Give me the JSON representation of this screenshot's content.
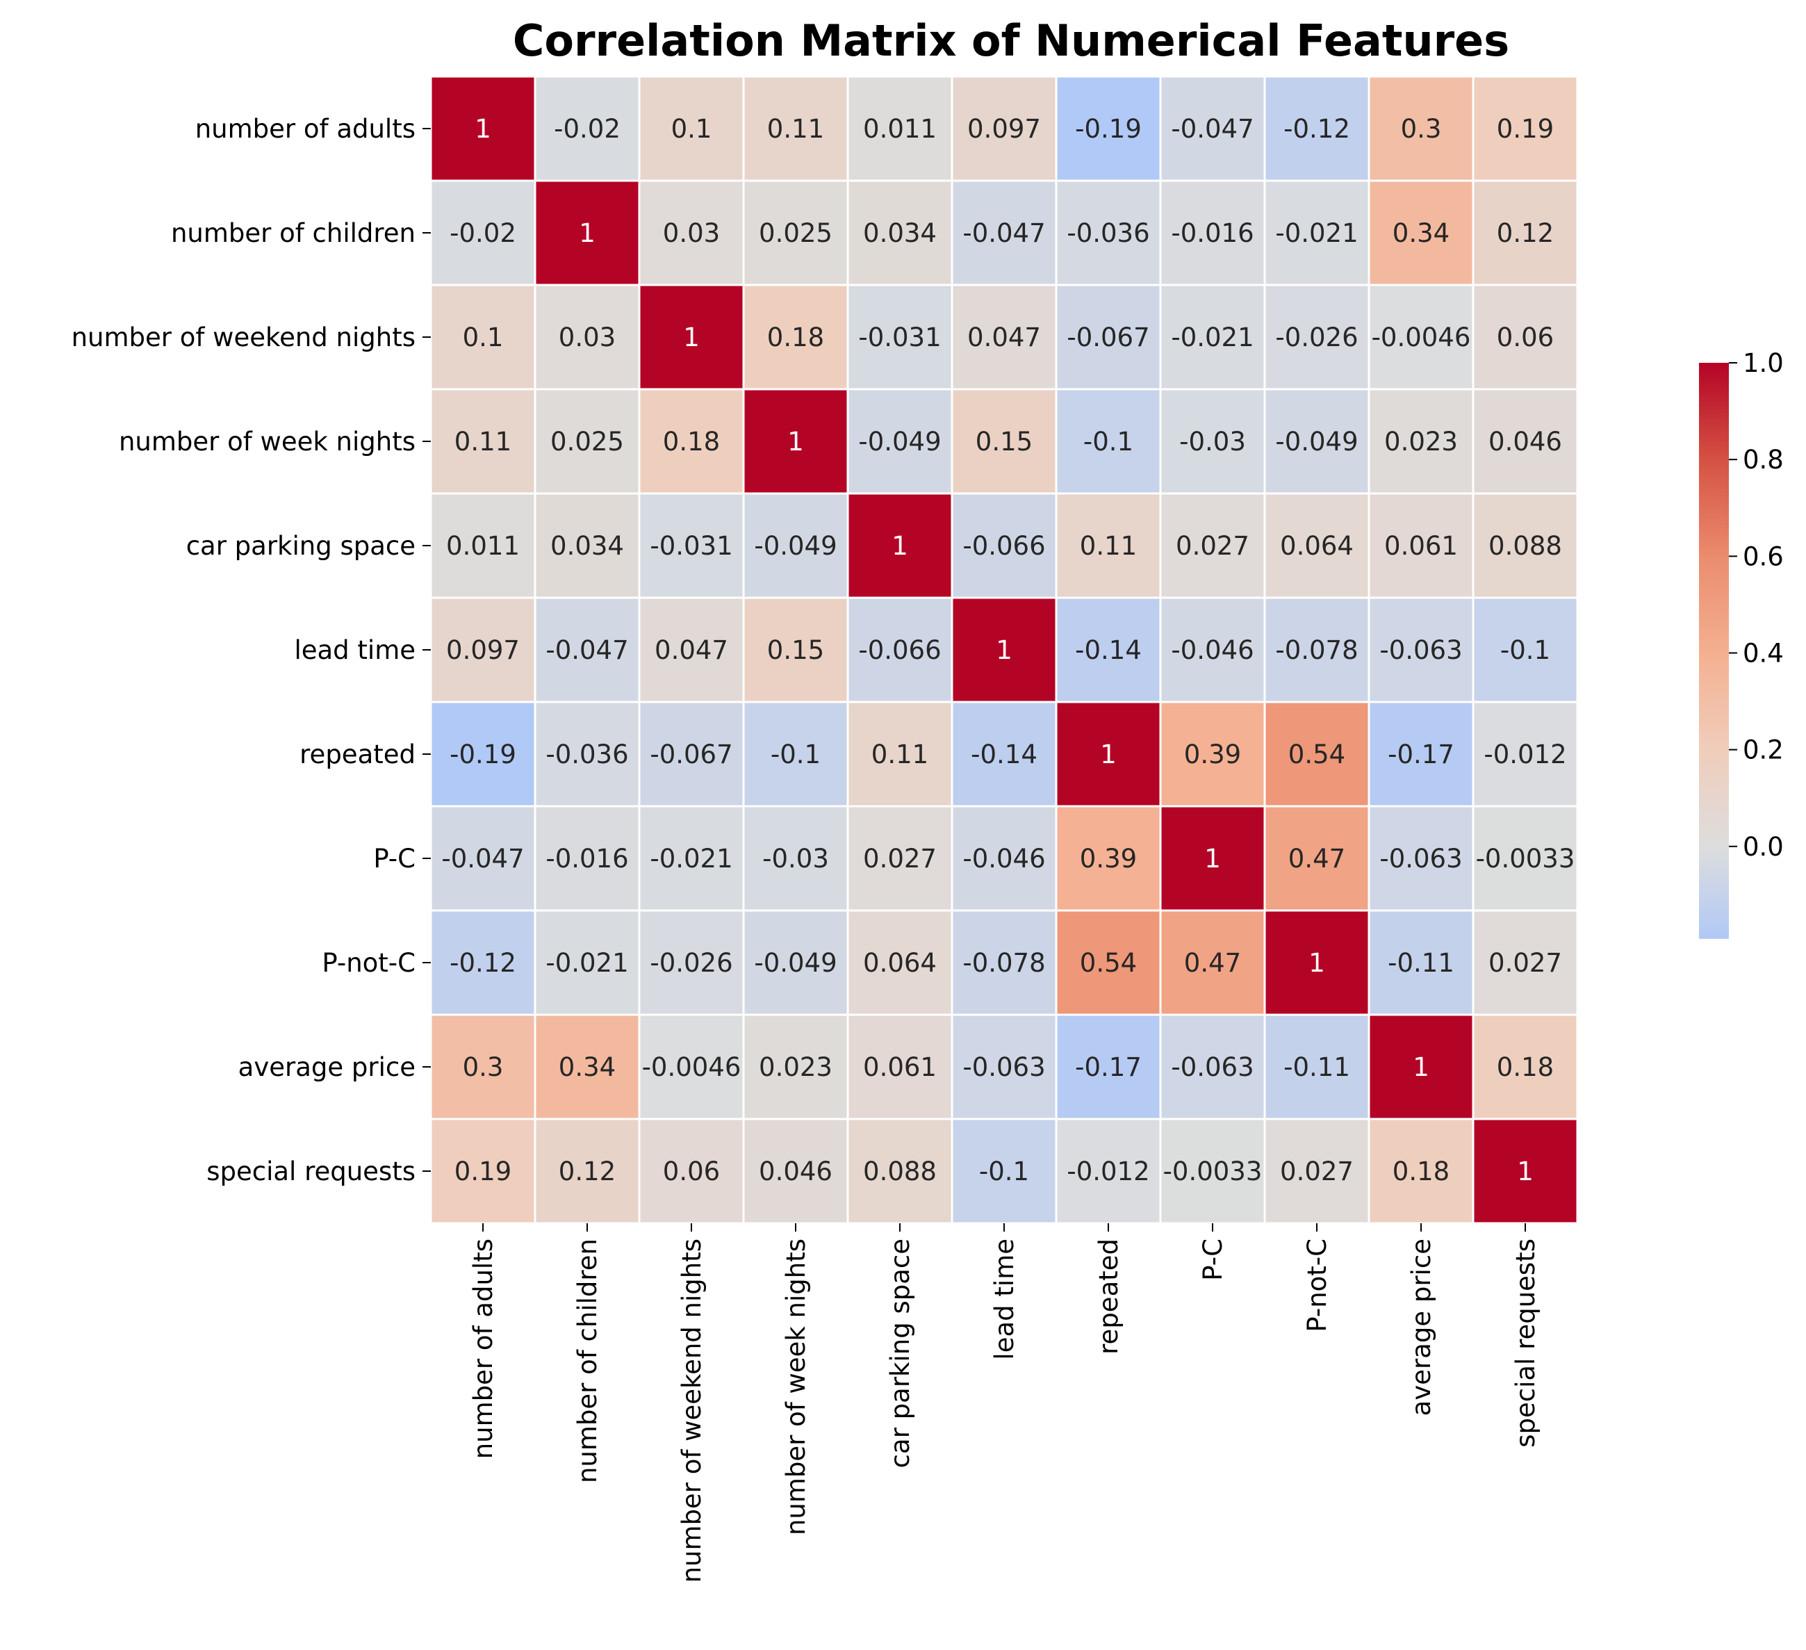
{
  "chart_data": {
    "type": "heatmap",
    "title": "Correlation Matrix of Numerical Features",
    "xlabel": "",
    "ylabel": "",
    "colormap": "coolwarm",
    "center": 0,
    "vmin": -0.19,
    "vmax": 1.0,
    "labels": [
      "number of adults",
      "number of children",
      "number of weekend nights",
      "number of week nights",
      "car parking space",
      "lead time",
      "repeated",
      "P-C",
      "P-not-C",
      "average price ",
      "special requests"
    ],
    "x_tick_labels": [
      "number of adults",
      "number of children",
      "number of weekend nights",
      "number of week nights",
      "car parking space",
      "lead time",
      "repeated",
      "P-C",
      "P-not-C",
      "average price",
      "special requests"
    ],
    "values": [
      [
        1,
        -0.02,
        0.1,
        0.11,
        0.011,
        0.097,
        -0.19,
        -0.047,
        -0.12,
        0.3,
        0.19
      ],
      [
        -0.02,
        1,
        0.03,
        0.025,
        0.034,
        -0.047,
        -0.036,
        -0.016,
        -0.021,
        0.34,
        0.12
      ],
      [
        0.1,
        0.03,
        1,
        0.18,
        -0.031,
        0.047,
        -0.067,
        -0.021,
        -0.026,
        -0.0046,
        0.06
      ],
      [
        0.11,
        0.025,
        0.18,
        1,
        -0.049,
        0.15,
        -0.1,
        -0.03,
        -0.049,
        0.023,
        0.046
      ],
      [
        0.011,
        0.034,
        -0.031,
        -0.049,
        1,
        -0.066,
        0.11,
        0.027,
        0.064,
        0.061,
        0.088
      ],
      [
        0.097,
        -0.047,
        0.047,
        0.15,
        -0.066,
        1,
        -0.14,
        -0.046,
        -0.078,
        -0.063,
        -0.1
      ],
      [
        -0.19,
        -0.036,
        -0.067,
        -0.1,
        0.11,
        -0.14,
        1,
        0.39,
        0.54,
        -0.17,
        -0.012
      ],
      [
        -0.047,
        -0.016,
        -0.021,
        -0.03,
        0.027,
        -0.046,
        0.39,
        1,
        0.47,
        -0.063,
        -0.0033
      ],
      [
        -0.12,
        -0.021,
        -0.026,
        -0.049,
        0.064,
        -0.078,
        0.54,
        0.47,
        1,
        -0.11,
        0.027
      ],
      [
        0.3,
        0.34,
        -0.0046,
        0.023,
        0.061,
        -0.063,
        -0.17,
        -0.063,
        -0.11,
        1,
        0.18
      ],
      [
        0.19,
        0.12,
        0.06,
        0.046,
        0.088,
        -0.1,
        -0.012,
        -0.0033,
        0.027,
        0.18,
        1
      ]
    ],
    "colorbar": {
      "ticks": [
        1.0,
        0.8,
        0.6,
        0.4,
        0.2,
        0.0
      ],
      "tick_labels": [
        "1.0",
        "0.8",
        "0.6",
        "0.4",
        "0.2",
        "0.0"
      ],
      "range": [
        -0.19,
        1.0
      ]
    },
    "grid": false
  }
}
